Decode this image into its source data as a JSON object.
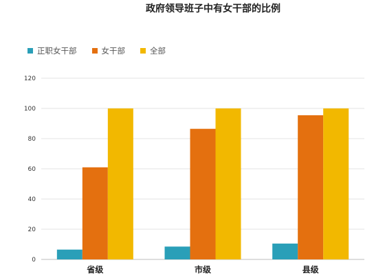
{
  "chart_data": {
    "type": "bar",
    "title": "政府领导班子中有女干部的比例",
    "categories": [
      "省级",
      "市级",
      "县级"
    ],
    "series": [
      {
        "name": "正职女干部",
        "values": [
          6.5,
          8.5,
          10.5
        ],
        "color": "#2a9fb8"
      },
      {
        "name": "女干部",
        "values": [
          61,
          86.5,
          95.5
        ],
        "color": "#e4700f"
      },
      {
        "name": "全部",
        "values": [
          100,
          100,
          100
        ],
        "color": "#f2b800"
      }
    ],
    "ylim": [
      0,
      120
    ],
    "yticks": [
      0,
      20,
      40,
      60,
      80,
      100,
      120
    ],
    "xlabel": "",
    "ylabel": "",
    "grid": true,
    "legend_position": "top-left"
  }
}
